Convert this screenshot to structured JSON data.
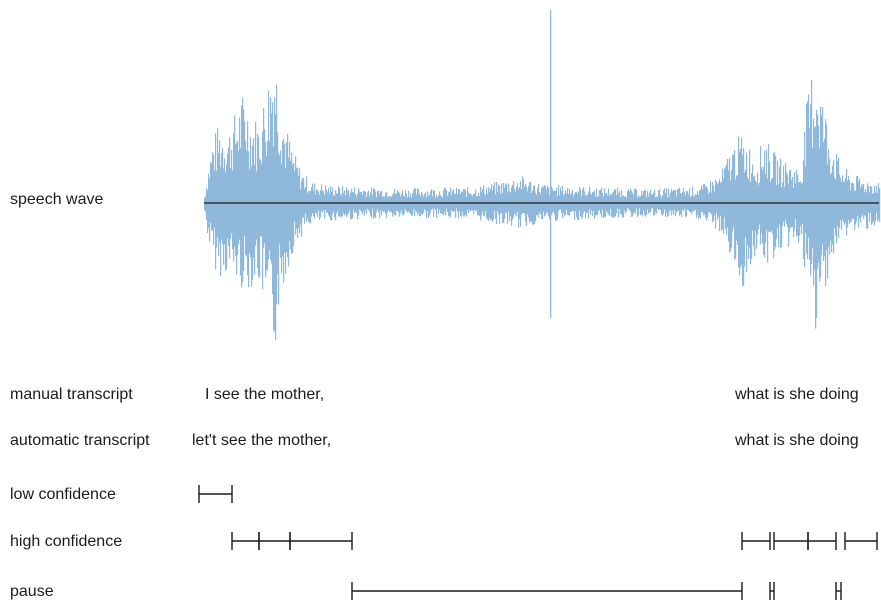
{
  "rows": {
    "speech_wave": "speech wave",
    "manual_transcript": "manual transcript",
    "automatic_transcript": "automatic transcript",
    "low_confidence": "low confidence",
    "high_confidence": "high confidence",
    "pause": "pause"
  },
  "manual": {
    "phrase_1": "I see the mother,",
    "phrase_2": "what is she doing"
  },
  "automatic": {
    "phrase_1": "let't see the mother,",
    "phrase_2": "what is she doing"
  },
  "colors": {
    "wave": "#8fb8da",
    "baseline": "#1a1a1a",
    "segment": "#1a1a1a",
    "text": "#1a1a1a"
  }
}
